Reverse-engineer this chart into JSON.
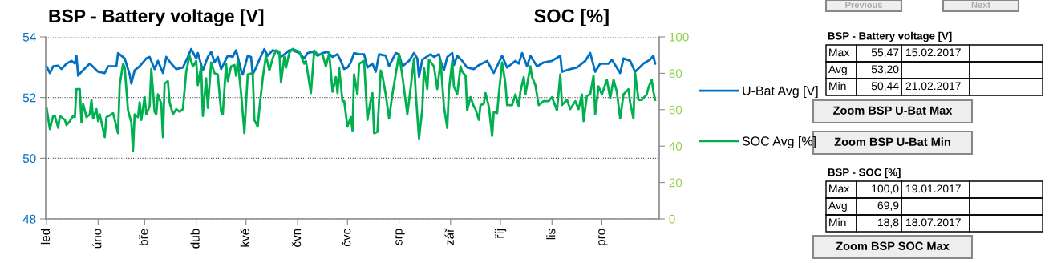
{
  "chart_data": {
    "type": "line",
    "title": "BSP - Battery voltage [V]",
    "y2label": "SOC [%]",
    "categories": [
      "led",
      null,
      null,
      null,
      null,
      null,
      null,
      null,
      null,
      null,
      null,
      null,
      null,
      null,
      null,
      null,
      null,
      null,
      null,
      null,
      null,
      null,
      null,
      null,
      null,
      null,
      null,
      null,
      null,
      null,
      null,
      "úno",
      null,
      null,
      null,
      null,
      null,
      null,
      null,
      null,
      null,
      null,
      null,
      null,
      null,
      null,
      null,
      null,
      null,
      null,
      null,
      null,
      null,
      null,
      null,
      null,
      null,
      null,
      null,
      "bře",
      null,
      null,
      null,
      null,
      null,
      null,
      null,
      null,
      null,
      null,
      null,
      null,
      null,
      null,
      null,
      null,
      null,
      null,
      null,
      null,
      null,
      null,
      null,
      null,
      null,
      null,
      null,
      null,
      null,
      null,
      "dub",
      null,
      null,
      null,
      null,
      null,
      null,
      null,
      null,
      null,
      null,
      null,
      null,
      null,
      null,
      null,
      null,
      null,
      null,
      null,
      null,
      null,
      null,
      null,
      null,
      null,
      null,
      null,
      null,
      null,
      "kvě",
      null,
      null,
      null,
      null,
      null,
      null,
      null,
      null,
      null,
      null,
      null,
      null,
      null,
      null,
      null,
      null,
      null,
      null,
      null,
      null,
      null,
      null,
      null,
      null,
      null,
      null,
      null,
      null,
      null,
      null,
      "čvn",
      null,
      null,
      null,
      null,
      null,
      null,
      null,
      null,
      null,
      null,
      null,
      null,
      null,
      null,
      null,
      null,
      null,
      null,
      null,
      null,
      null,
      null,
      null,
      null,
      null,
      null,
      null,
      null,
      null,
      "čvc",
      null,
      null,
      null,
      null,
      null,
      null,
      null,
      null,
      null,
      null,
      null,
      null,
      null,
      null,
      null,
      null,
      null,
      null,
      null,
      null,
      null,
      null,
      null,
      null,
      null,
      null,
      null,
      null,
      null,
      null,
      "srp",
      null,
      null,
      null,
      null,
      null,
      null,
      null,
      null,
      null,
      null,
      null,
      null,
      null,
      null,
      null,
      null,
      null,
      null,
      null,
      null,
      null,
      null,
      null,
      null,
      null,
      null,
      null,
      null,
      null,
      null,
      "zář",
      null,
      null,
      null,
      null,
      null,
      null,
      null,
      null,
      null,
      null,
      null,
      null,
      null,
      null,
      null,
      null,
      null,
      null,
      null,
      null,
      null,
      null,
      null,
      null,
      null,
      null,
      null,
      null,
      null,
      "říj",
      null,
      null,
      null,
      null,
      null,
      null,
      null,
      null,
      null,
      null,
      null,
      null,
      null,
      null,
      null,
      null,
      null,
      null,
      null,
      null,
      null,
      null,
      null,
      null,
      null,
      null,
      null,
      null,
      null,
      null,
      "lis",
      null,
      null,
      null,
      null,
      null,
      null,
      null,
      null,
      null,
      null,
      null,
      null,
      null,
      null,
      null,
      null,
      null,
      null,
      null,
      null,
      null,
      null,
      null,
      null,
      null,
      null,
      null,
      null,
      null,
      "pro",
      null,
      null,
      null,
      null,
      null,
      null,
      null,
      null,
      null,
      null,
      null,
      null,
      null,
      null,
      null,
      null,
      null,
      null,
      null,
      null,
      null,
      null,
      null,
      null,
      null,
      null,
      null,
      null,
      null,
      null,
      null,
      null
    ],
    "ylim": [
      48,
      54
    ],
    "yticks": [
      48,
      50,
      52,
      54
    ],
    "y2lim": [
      0,
      100
    ],
    "y2ticks": [
      0,
      20,
      40,
      60,
      80,
      100
    ],
    "grid": "y",
    "legend": "right",
    "line_style": "solid",
    "marker": "none",
    "series": [
      {
        "name": "U-Bat Avg [V]",
        "color": "#0070c0",
        "values": [
          53.03,
          null,
          52.81,
          null,
          53.03,
          null,
          null,
          53.05,
          null,
          52.94,
          null,
          null,
          53.12,
          null,
          null,
          53.21,
          null,
          53.12,
          53.38,
          52.72,
          null,
          52.85,
          null,
          null,
          null,
          null,
          53.12,
          null,
          null,
          null,
          null,
          52.85,
          null,
          null,
          null,
          52.81,
          null,
          53.03,
          null,
          null,
          null,
          null,
          53.03,
          53.47,
          null,
          null,
          null,
          53.29,
          null,
          null,
          52.76,
          52.46,
          null,
          52.9,
          null,
          null,
          53.03,
          null,
          null,
          null,
          53.29,
          null,
          53.34,
          null,
          null,
          52.94,
          null,
          53.21,
          null,
          null,
          52.81,
          null,
          53.34,
          null,
          null,
          53.12,
          null,
          null,
          52.94,
          null,
          null,
          null,
          52.99,
          null,
          null,
          53.34,
          null,
          53.6,
          null,
          null,
          53.29,
          53.47,
          null,
          null,
          52.9,
          null,
          null,
          53.34,
          null,
          53.51,
          null,
          53.16,
          null,
          53.34,
          null,
          52.94,
          null,
          null,
          null,
          53.38,
          null,
          null,
          53.34,
          null,
          53.56,
          null,
          null,
          52.9,
          52.76,
          null,
          null,
          53.38,
          null,
          53.34,
          52.76,
          null,
          52.99,
          null,
          53.25,
          null,
          null,
          53.6,
          null,
          53.38,
          null,
          null,
          53.56,
          null,
          null,
          53.51,
          null,
          53.34,
          null,
          null,
          53.47,
          null,
          53.56,
          null,
          53.56,
          null,
          null,
          null,
          53.47,
          null,
          null,
          53.29,
          null,
          53.47,
          null,
          null,
          53.51,
          null,
          null,
          53.38,
          null,
          null,
          53.47,
          null,
          null,
          53.51,
          null,
          null,
          53.34,
          null,
          null,
          53.43,
          null,
          53.21,
          null,
          52.94,
          null,
          52.99,
          null,
          53.16,
          null,
          53.47,
          null,
          null,
          53.43,
          null,
          null,
          53.43,
          null,
          52.99,
          null,
          null,
          53.12,
          null,
          52.85,
          null,
          53.43,
          null,
          null,
          null,
          53.38,
          null,
          53.03,
          null,
          null,
          null,
          53.47,
          null,
          53.43,
          null,
          53.03,
          null,
          null,
          null,
          53.21,
          null,
          null,
          53.47,
          null,
          53.29,
          52.68,
          null,
          53.25,
          null,
          null,
          null,
          null,
          53.43,
          null,
          53.34,
          null,
          null,
          53.43,
          53.21,
          null,
          52.9,
          null,
          53.34,
          null,
          null,
          53.47,
          53.07,
          null,
          53.38,
          null,
          null,
          53.21,
          null,
          null,
          52.99,
          null,
          null,
          null,
          52.94,
          null,
          null,
          53.07,
          null,
          null,
          null,
          null,
          53.21,
          null,
          null,
          null,
          52.81,
          null,
          null,
          null,
          null,
          53.38,
          null,
          null,
          52.99,
          null,
          null,
          null,
          null,
          53.21,
          null,
          53.12,
          null,
          53.47,
          null,
          null,
          53.03,
          null,
          53.38,
          null,
          null,
          null,
          53.03,
          null,
          null,
          null,
          53.16,
          null,
          null,
          null,
          null,
          53.21,
          null,
          null,
          null,
          null,
          53.38,
          52.85,
          null,
          null,
          null,
          null,
          52.94,
          null,
          null,
          null,
          52.99,
          null,
          null,
          null,
          null,
          53.21,
          null,
          null,
          53.47,
          null,
          null,
          52.85,
          null,
          null,
          53.12,
          null,
          null,
          null,
          null,
          53.12,
          null,
          53.25,
          null,
          null,
          null,
          null,
          52.81,
          null,
          53.29,
          null,
          null,
          null,
          53.21,
          null,
          null,
          52.85,
          null,
          null,
          null,
          null,
          53.12,
          null,
          null,
          null,
          53.25,
          null,
          53.38,
          53.12
        ]
      },
      {
        "name": "SOC Avg [%]",
        "color": "#00b050",
        "axis": "y2",
        "values": [
          61.0,
          null,
          49.3,
          null,
          56.6,
          56.6,
          null,
          50.0,
          56.6,
          null,
          null,
          54.4,
          51.5,
          null,
          53.7,
          null,
          56.6,
          55.9,
          71.3,
          null,
          71.3,
          52.9,
          63.2,
          null,
          55.9,
          null,
          57.4,
          65.4,
          55.1,
          null,
          60.3,
          53.7,
          57.4,
          null,
          null,
          44.9,
          55.9,
          null,
          null,
          57.4,
          58.1,
          null,
          null,
          47.1,
          73.5,
          null,
          85.3,
          83.1,
          null,
          59.6,
          null,
          52.9,
          37.5,
          57.4,
          null,
          55.9,
          64.0,
          54.4,
          null,
          66.9,
          57.4,
          null,
          61.8,
          82.4,
          null,
          58.8,
          57.4,
          68.4,
          null,
          63.2,
          44.9,
          74.3,
          null,
          75.7,
          64.0,
          null,
          57.4,
          null,
          60.3,
          null,
          58.8,
          null,
          60.3,
          null,
          80.9,
          null,
          89.7,
          null,
          83.8,
          null,
          86.8,
          73.5,
          null,
          83.8,
          56.6,
          null,
          77.2,
          61.0,
          null,
          86.0,
          null,
          80.1,
          null,
          79.4,
          null,
          58.8,
          57.4,
          null,
          85.3,
          75.7,
          null,
          83.8,
          null,
          84.6,
          78.7,
          86.8,
          null,
          69.1,
          null,
          47.1,
          null,
          79.4,
          null,
          null,
          80.1,
          54.4,
          null,
          50.7,
          60.3,
          null,
          77.2,
          null,
          89.7,
          null,
          81.6,
          null,
          88.2,
          null,
          92.6,
          null,
          91.9,
          75.0,
          null,
          89.0,
          83.1,
          null,
          91.2,
          null,
          93.4,
          null,
          92.6,
          null,
          91.9,
          null,
          null,
          85.3,
          86.8,
          null,
          null,
          69.1,
          null,
          92.6,
          null,
          90.4,
          null,
          null,
          90.4,
          null,
          83.8,
          null,
          91.2,
          null,
          69.9,
          null,
          77.9,
          69.1,
          83.1,
          null,
          64.7,
          64.7,
          null,
          50.7,
          null,
          55.9,
          48.5,
          79.4,
          null,
          68.4,
          85.3,
          null,
          null,
          86.8,
          null,
          54.4,
          null,
          65.4,
          69.1,
          47.1,
          null,
          47.8,
          null,
          81.6,
          78.7,
          null,
          68.4,
          null,
          55.1,
          null,
          68.4,
          null,
          79.4,
          null,
          90.4,
          null,
          78.7,
          null,
          null,
          57.4,
          null,
          72.1,
          null,
          88.2,
          69.9,
          null,
          44.1,
          null,
          60.3,
          83.1,
          null,
          71.3,
          87.5,
          null,
          null,
          83.8,
          null,
          71.3,
          null,
          86.8,
          null,
          61.8,
          null,
          50.0,
          70.6,
          null,
          86.8,
          72.8,
          null,
          68.4,
          null,
          83.8,
          80.9,
          null,
          78.7,
          59.6,
          null,
          66.9,
          null,
          61.8,
          60.3,
          null,
          54.4,
          62.5,
          null,
          63.2,
          69.1,
          null,
          61.8,
          null,
          45.6,
          58.8,
          null,
          58.1,
          68.4,
          null,
          86.0,
          null,
          74.3,
          62.5,
          null,
          null,
          62.5,
          null,
          68.4,
          null,
          61.8,
          69.9,
          null,
          77.9,
          68.4,
          null,
          null,
          83.8,
          77.9,
          null,
          73.5,
          null,
          62.5,
          null,
          null,
          64.7,
          null,
          null,
          64.7,
          null,
          66.9,
          null,
          null,
          59.6,
          null,
          79.4,
          62.5,
          null,
          null,
          65.4,
          null,
          60.3,
          null,
          null,
          64.7,
          null,
          60.3,
          null,
          68.4,
          53.7,
          null,
          67.6,
          null,
          68.4,
          null,
          78.7,
          57.4,
          null,
          72.8,
          null,
          68.4,
          null,
          null,
          76.5,
          null,
          66.2,
          null,
          76.5,
          null,
          69.9,
          null,
          55.1,
          null,
          68.4,
          null,
          null,
          71.3,
          64.0,
          null,
          55.1,
          80.1,
          null,
          65.4,
          null,
          65.4,
          null,
          null,
          68.4,
          72.1,
          null,
          76.5,
          69.9,
          65.4
        ]
      }
    ],
    "annotations": [
      "BSP - Battery voltage [V]",
      "Max",
      "55,47",
      "15.02.2017",
      "Avg",
      "53,20",
      "Min",
      "50,44",
      "21.02.2017",
      "Zoom BSP U-Bat Max",
      "Zoom BSP U-Bat Min",
      "BSP - SOC [%]",
      "Max",
      "100,0",
      "19.01.2017",
      "Avg",
      "69,9",
      "Min",
      "18,8",
      "18.07.2017",
      "Zoom BSP SOC Max",
      "Previous",
      "Next"
    ]
  }
}
